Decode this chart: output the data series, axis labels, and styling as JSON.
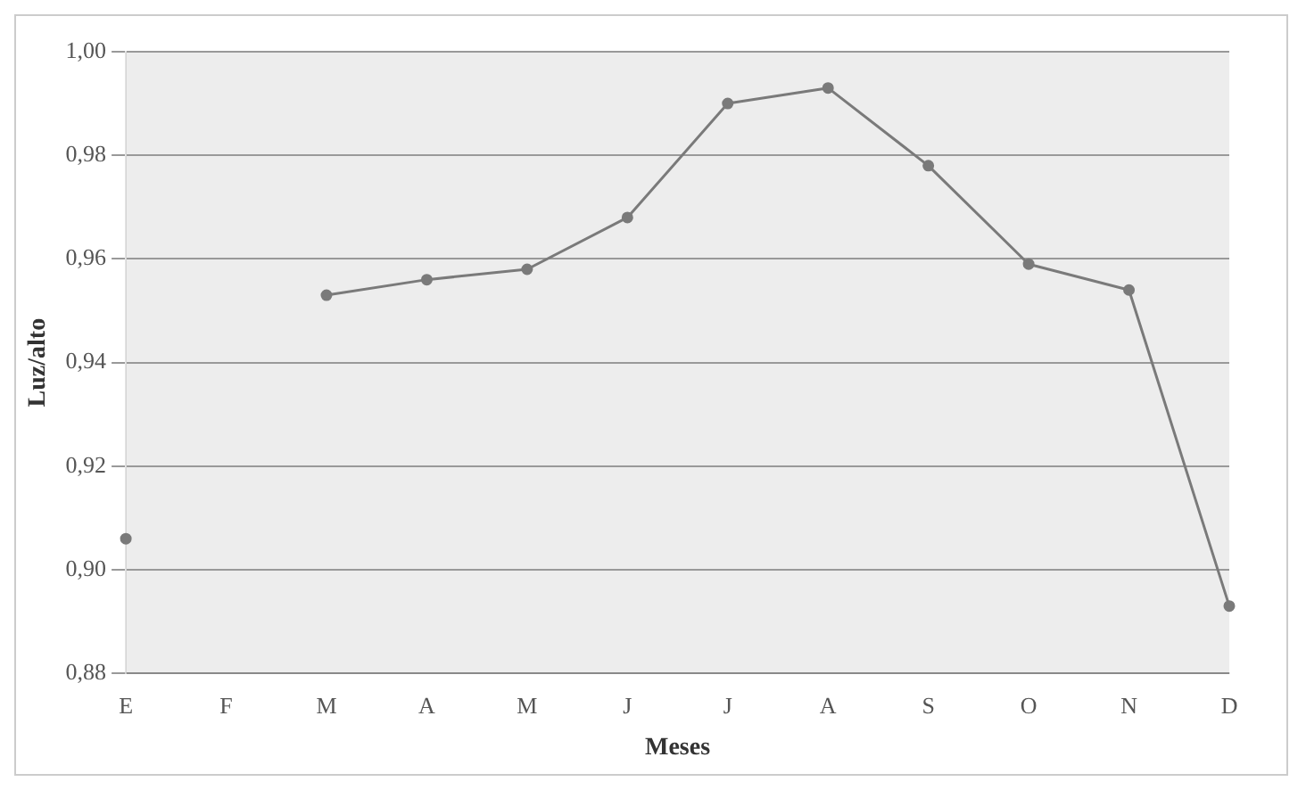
{
  "chart_data": {
    "type": "line",
    "xlabel": "Meses",
    "ylabel": "Luz/alto",
    "categories": [
      "E",
      "F",
      "M",
      "A",
      "M",
      "J",
      "J",
      "A",
      "S",
      "O",
      "N",
      "D"
    ],
    "series": [
      {
        "color": "#7a7a7a",
        "values": [
          0.906,
          null,
          0.953,
          0.956,
          0.958,
          0.968,
          0.99,
          0.993,
          0.978,
          0.959,
          0.954,
          0.893
        ]
      }
    ],
    "ylim": [
      0.88,
      1.0
    ],
    "yticks": [
      {
        "value": 0.88,
        "label": "0,88"
      },
      {
        "value": 0.9,
        "label": "0,90"
      },
      {
        "value": 0.92,
        "label": "0,92"
      },
      {
        "value": 0.94,
        "label": "0,94"
      },
      {
        "value": 0.96,
        "label": "0,96"
      },
      {
        "value": 0.98,
        "label": "0,98"
      },
      {
        "value": 1.0,
        "label": "1,00"
      }
    ],
    "grid": "y",
    "legend": false,
    "marker": "circle",
    "line_style": "solid"
  }
}
